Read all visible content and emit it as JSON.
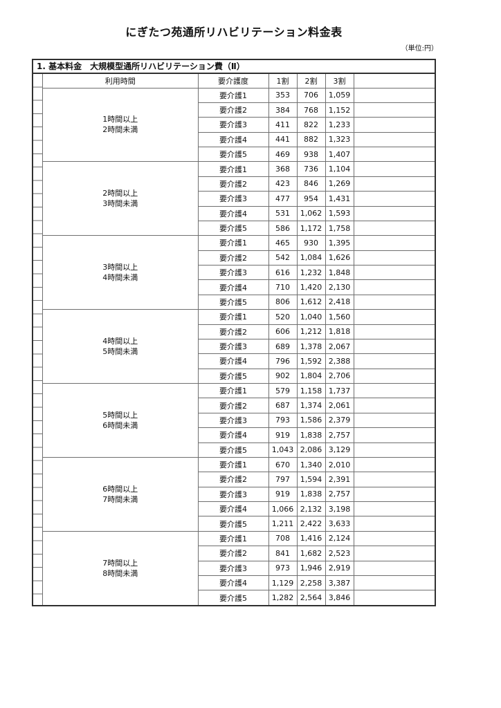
{
  "page": {
    "title": "にぎたつ苑通所リハビリテーション料金表",
    "unit_note": "（単位:円）",
    "section_header": "1. 基本料金　大規模型通所リハビリテーション費（Ⅱ）"
  },
  "table": {
    "columns": {
      "time": "利用時間",
      "level": "要介護度",
      "r1": "1割",
      "r2": "2割",
      "r3": "3割",
      "extra": ""
    },
    "blocks": [
      {
        "time_lines": [
          "1時間以上",
          "2時間未満"
        ],
        "rows": [
          [
            "要介護1",
            "353",
            "706",
            "1,059"
          ],
          [
            "要介護2",
            "384",
            "768",
            "1,152"
          ],
          [
            "要介護3",
            "411",
            "822",
            "1,233"
          ],
          [
            "要介護4",
            "441",
            "882",
            "1,323"
          ],
          [
            "要介護5",
            "469",
            "938",
            "1,407"
          ]
        ]
      },
      {
        "time_lines": [
          "2時間以上",
          "3時間未満"
        ],
        "rows": [
          [
            "要介護1",
            "368",
            "736",
            "1,104"
          ],
          [
            "要介護2",
            "423",
            "846",
            "1,269"
          ],
          [
            "要介護3",
            "477",
            "954",
            "1,431"
          ],
          [
            "要介護4",
            "531",
            "1,062",
            "1,593"
          ],
          [
            "要介護5",
            "586",
            "1,172",
            "1,758"
          ]
        ]
      },
      {
        "time_lines": [
          "3時間以上",
          "4時間未満"
        ],
        "rows": [
          [
            "要介護1",
            "465",
            "930",
            "1,395"
          ],
          [
            "要介護2",
            "542",
            "1,084",
            "1,626"
          ],
          [
            "要介護3",
            "616",
            "1,232",
            "1,848"
          ],
          [
            "要介護4",
            "710",
            "1,420",
            "2,130"
          ],
          [
            "要介護5",
            "806",
            "1,612",
            "2,418"
          ]
        ]
      },
      {
        "time_lines": [
          "4時間以上",
          "5時間未満"
        ],
        "rows": [
          [
            "要介護1",
            "520",
            "1,040",
            "1,560"
          ],
          [
            "要介護2",
            "606",
            "1,212",
            "1,818"
          ],
          [
            "要介護3",
            "689",
            "1,378",
            "2,067"
          ],
          [
            "要介護4",
            "796",
            "1,592",
            "2,388"
          ],
          [
            "要介護5",
            "902",
            "1,804",
            "2,706"
          ]
        ]
      },
      {
        "time_lines": [
          "5時間以上",
          "6時間未満"
        ],
        "rows": [
          [
            "要介護1",
            "579",
            "1,158",
            "1,737"
          ],
          [
            "要介護2",
            "687",
            "1,374",
            "2,061"
          ],
          [
            "要介護3",
            "793",
            "1,586",
            "2,379"
          ],
          [
            "要介護4",
            "919",
            "1,838",
            "2,757"
          ],
          [
            "要介護5",
            "1,043",
            "2,086",
            "3,129"
          ]
        ]
      },
      {
        "time_lines": [
          "6時間以上",
          "7時間未満"
        ],
        "rows": [
          [
            "要介護1",
            "670",
            "1,340",
            "2,010"
          ],
          [
            "要介護2",
            "797",
            "1,594",
            "2,391"
          ],
          [
            "要介護3",
            "919",
            "1,838",
            "2,757"
          ],
          [
            "要介護4",
            "1,066",
            "2,132",
            "3,198"
          ],
          [
            "要介護5",
            "1,211",
            "2,422",
            "3,633"
          ]
        ]
      },
      {
        "time_lines": [
          "7時間以上",
          "8時間未満"
        ],
        "rows": [
          [
            "要介護1",
            "708",
            "1,416",
            "2,124"
          ],
          [
            "要介護2",
            "841",
            "1,682",
            "2,523"
          ],
          [
            "要介護3",
            "973",
            "1,946",
            "2,919"
          ],
          [
            "要介護4",
            "1,129",
            "2,258",
            "3,387"
          ],
          [
            "要介護5",
            "1,282",
            "2,564",
            "3,846"
          ]
        ]
      }
    ]
  }
}
